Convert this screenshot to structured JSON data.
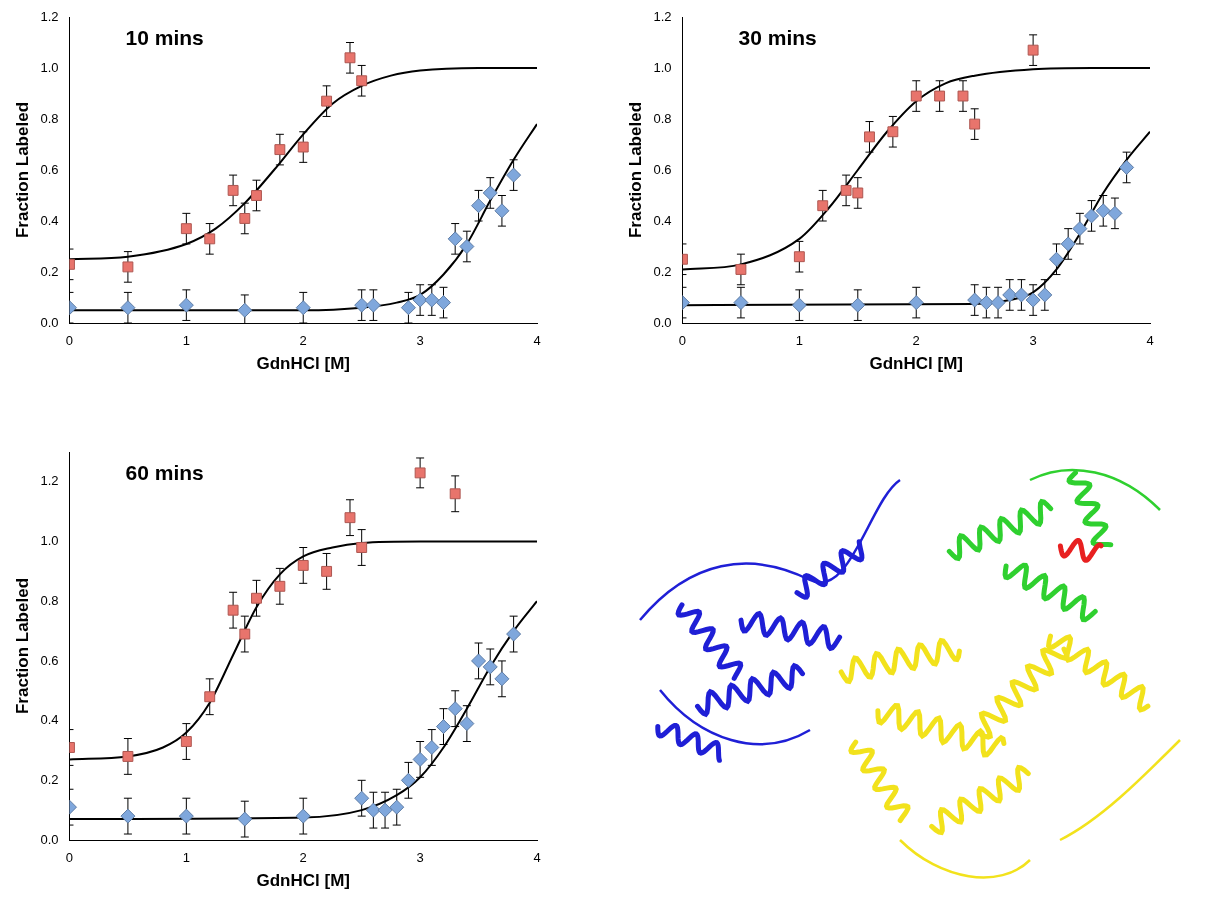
{
  "chart_data": [
    {
      "type": "scatter",
      "title": "10 mins",
      "x_label": "GdnHCl [M]",
      "y_label": "Fraction Labeled",
      "xlim": [
        0,
        4
      ],
      "ylim": [
        0,
        1.2
      ],
      "xticks": [
        0,
        1,
        2,
        3,
        4
      ],
      "yticks": [
        {
          "value": 0,
          "label": "0.0"
        },
        0.2,
        0.4,
        0.6,
        0.8,
        {
          "value": 1,
          "label": "1.0"
        },
        1.2
      ],
      "grid": false,
      "series": [
        {
          "type": "line",
          "color": "#000000",
          "line_style": "solid",
          "x": [
            0,
            0.5,
            1.0,
            1.25,
            1.5,
            1.75,
            2.0,
            2.25,
            2.5,
            2.75,
            3.0,
            3.5,
            4.0
          ],
          "values": [
            0.25,
            0.26,
            0.31,
            0.37,
            0.47,
            0.6,
            0.74,
            0.86,
            0.93,
            0.97,
            0.99,
            1.0,
            1.0
          ]
        },
        {
          "type": "line",
          "color": "#000000",
          "line_style": "solid",
          "x": [
            0,
            2.0,
            2.5,
            2.8,
            3.0,
            3.2,
            3.4,
            3.6,
            3.8,
            4.0
          ],
          "values": [
            0.05,
            0.05,
            0.06,
            0.08,
            0.11,
            0.19,
            0.31,
            0.48,
            0.64,
            0.78
          ]
        },
        {
          "type": "scatter",
          "color": "#e8746c",
          "marker": "square",
          "x": [
            0,
            0.5,
            1.0,
            1.2,
            1.4,
            1.5,
            1.6,
            1.8,
            2.0,
            2.2,
            2.4,
            2.5
          ],
          "values": [
            0.23,
            0.22,
            0.37,
            0.33,
            0.52,
            0.41,
            0.5,
            0.68,
            0.69,
            0.87,
            1.04,
            0.95
          ],
          "errors": [
            0.06,
            0.06,
            0.06,
            0.06,
            0.06,
            0.06,
            0.06,
            0.06,
            0.06,
            0.06,
            0.06,
            0.06
          ]
        },
        {
          "type": "scatter",
          "color": "#7fa7dc",
          "marker": "diamond",
          "x": [
            0,
            0.5,
            1.0,
            1.5,
            2.0,
            2.5,
            2.6,
            2.9,
            3.0,
            3.1,
            3.2,
            3.3,
            3.4,
            3.5,
            3.6,
            3.7,
            3.8
          ],
          "values": [
            0.06,
            0.06,
            0.07,
            0.05,
            0.06,
            0.07,
            0.07,
            0.06,
            0.09,
            0.09,
            0.08,
            0.33,
            0.3,
            0.46,
            0.51,
            0.44,
            0.58
          ],
          "errors": [
            0.06,
            0.06,
            0.06,
            0.06,
            0.06,
            0.06,
            0.06,
            0.06,
            0.06,
            0.06,
            0.06,
            0.06,
            0.06,
            0.06,
            0.06,
            0.06,
            0.06
          ]
        }
      ]
    },
    {
      "type": "scatter",
      "title": "30 mins",
      "x_label": "GdnHCl [M]",
      "y_label": "Fraction Labeled",
      "xlim": [
        0,
        4
      ],
      "ylim": [
        0,
        1.2
      ],
      "xticks": [
        0,
        1,
        2,
        3,
        4
      ],
      "yticks": [
        {
          "value": 0,
          "label": "0.0"
        },
        0.2,
        0.4,
        0.6,
        0.8,
        {
          "value": 1,
          "label": "1.0"
        },
        1.2
      ],
      "grid": false,
      "series": [
        {
          "type": "line",
          "color": "#000000",
          "line_style": "solid",
          "x": [
            0,
            0.5,
            1.0,
            1.25,
            1.5,
            1.75,
            2.0,
            2.25,
            2.5,
            3.0,
            3.5,
            4.0
          ],
          "values": [
            0.21,
            0.23,
            0.33,
            0.45,
            0.6,
            0.75,
            0.87,
            0.94,
            0.97,
            0.995,
            1.0,
            1.0
          ]
        },
        {
          "type": "line",
          "color": "#000000",
          "line_style": "solid",
          "x": [
            0,
            2.5,
            2.8,
            3.0,
            3.2,
            3.4,
            3.6,
            3.8,
            4.0
          ],
          "values": [
            0.07,
            0.075,
            0.09,
            0.12,
            0.21,
            0.35,
            0.51,
            0.64,
            0.75
          ]
        },
        {
          "type": "scatter",
          "color": "#e8746c",
          "marker": "square",
          "x": [
            0,
            0.5,
            1.0,
            1.2,
            1.4,
            1.5,
            1.6,
            1.8,
            2.0,
            2.2,
            2.4,
            2.5,
            3.0
          ],
          "values": [
            0.25,
            0.21,
            0.26,
            0.46,
            0.52,
            0.51,
            0.73,
            0.75,
            0.89,
            0.89,
            0.89,
            0.78,
            1.07
          ],
          "errors": [
            0.06,
            0.06,
            0.06,
            0.06,
            0.06,
            0.06,
            0.06,
            0.06,
            0.06,
            0.06,
            0.06,
            0.06,
            0.06
          ]
        },
        {
          "type": "scatter",
          "color": "#7fa7dc",
          "marker": "diamond",
          "x": [
            0,
            0.5,
            1.0,
            1.5,
            2.0,
            2.5,
            2.6,
            2.7,
            2.8,
            2.9,
            3.0,
            3.1,
            3.2,
            3.3,
            3.4,
            3.5,
            3.6,
            3.7,
            3.8
          ],
          "values": [
            0.08,
            0.08,
            0.07,
            0.07,
            0.08,
            0.09,
            0.08,
            0.08,
            0.11,
            0.11,
            0.09,
            0.11,
            0.25,
            0.31,
            0.37,
            0.42,
            0.44,
            0.43,
            0.61
          ],
          "errors": [
            0.06,
            0.06,
            0.06,
            0.06,
            0.06,
            0.06,
            0.06,
            0.06,
            0.06,
            0.06,
            0.06,
            0.06,
            0.06,
            0.06,
            0.06,
            0.06,
            0.06,
            0.06,
            0.06
          ]
        }
      ]
    },
    {
      "type": "scatter",
      "title": "60 mins",
      "x_label": "GdnHCl [M]",
      "y_label": "Fraction Labeled",
      "xlim": [
        0,
        4
      ],
      "ylim": [
        0,
        1.3
      ],
      "xticks": [
        0,
        1,
        2,
        3,
        4
      ],
      "yticks": [
        {
          "value": 0,
          "label": "0.0"
        },
        0.2,
        0.4,
        0.6,
        0.8,
        {
          "value": 1,
          "label": "1.0"
        },
        1.2
      ],
      "grid": false,
      "series": [
        {
          "type": "line",
          "color": "#000000",
          "line_style": "solid",
          "x": [
            0,
            0.5,
            0.8,
            1.0,
            1.2,
            1.4,
            1.6,
            1.8,
            2.0,
            2.25,
            2.5,
            3.0,
            4.0
          ],
          "values": [
            0.27,
            0.28,
            0.31,
            0.36,
            0.46,
            0.62,
            0.78,
            0.89,
            0.95,
            0.98,
            0.995,
            1.0,
            1.0
          ]
        },
        {
          "type": "line",
          "color": "#000000",
          "line_style": "solid",
          "x": [
            0,
            2.0,
            2.5,
            2.8,
            3.0,
            3.2,
            3.4,
            3.6,
            3.8,
            4.0
          ],
          "values": [
            0.07,
            0.075,
            0.1,
            0.15,
            0.21,
            0.31,
            0.44,
            0.58,
            0.7,
            0.8
          ]
        },
        {
          "type": "scatter",
          "color": "#e8746c",
          "marker": "square",
          "x": [
            0,
            0.5,
            1.0,
            1.2,
            1.4,
            1.5,
            1.6,
            1.8,
            2.0,
            2.2,
            2.4,
            2.5,
            3.0,
            3.3
          ],
          "values": [
            0.31,
            0.28,
            0.33,
            0.48,
            0.77,
            0.69,
            0.81,
            0.85,
            0.92,
            0.9,
            1.08,
            0.98,
            1.23,
            1.16
          ],
          "errors": [
            0.06,
            0.06,
            0.06,
            0.06,
            0.06,
            0.06,
            0.06,
            0.06,
            0.06,
            0.06,
            0.06,
            0.06,
            0.05,
            0.06
          ]
        },
        {
          "type": "scatter",
          "color": "#7fa7dc",
          "marker": "diamond",
          "x": [
            0,
            0.5,
            1.0,
            1.5,
            2.0,
            2.5,
            2.6,
            2.7,
            2.8,
            2.9,
            3.0,
            3.1,
            3.2,
            3.3,
            3.4,
            3.5,
            3.6,
            3.7,
            3.8
          ],
          "values": [
            0.11,
            0.08,
            0.08,
            0.07,
            0.08,
            0.14,
            0.1,
            0.1,
            0.11,
            0.2,
            0.27,
            0.31,
            0.38,
            0.44,
            0.39,
            0.6,
            0.58,
            0.54,
            0.69
          ],
          "errors": [
            0.06,
            0.06,
            0.06,
            0.06,
            0.06,
            0.06,
            0.06,
            0.06,
            0.06,
            0.06,
            0.06,
            0.06,
            0.06,
            0.06,
            0.06,
            0.06,
            0.06,
            0.06,
            0.06
          ]
        }
      ]
    }
  ]
}
